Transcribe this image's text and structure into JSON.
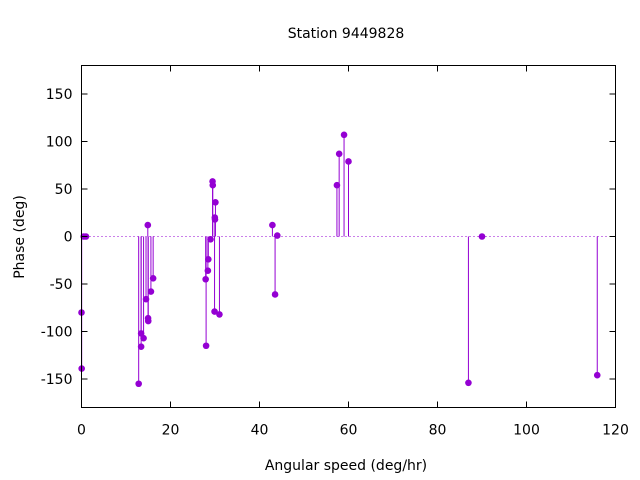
{
  "chart_data": {
    "type": "scatter",
    "title": "Station 9449828",
    "xlabel": "Angular speed (deg/hr)",
    "ylabel": "Phase (deg)",
    "xlim": [
      0,
      120
    ],
    "ylim": [
      -180,
      180
    ],
    "xticks": [
      0,
      20,
      40,
      60,
      80,
      100,
      120
    ],
    "yticks": [
      -150,
      -100,
      -50,
      0,
      50,
      100,
      150
    ],
    "grid": false,
    "zero_line": true,
    "marker_style": "impulses-with-points",
    "color": "#9400d3",
    "points": [
      {
        "x": 0.0,
        "y": -80
      },
      {
        "x": 0.04,
        "y": -139
      },
      {
        "x": 0.5,
        "y": 0
      },
      {
        "x": 1.0,
        "y": 0
      },
      {
        "x": 12.85,
        "y": -155
      },
      {
        "x": 13.4,
        "y": -102
      },
      {
        "x": 13.4,
        "y": -116
      },
      {
        "x": 13.95,
        "y": -107
      },
      {
        "x": 14.5,
        "y": -66
      },
      {
        "x": 14.9,
        "y": 12
      },
      {
        "x": 14.96,
        "y": -86
      },
      {
        "x": 15.0,
        "y": -89
      },
      {
        "x": 15.6,
        "y": -58
      },
      {
        "x": 16.1,
        "y": -44
      },
      {
        "x": 27.9,
        "y": -45
      },
      {
        "x": 28.0,
        "y": -115
      },
      {
        "x": 28.4,
        "y": -36
      },
      {
        "x": 28.5,
        "y": -24
      },
      {
        "x": 29.0,
        "y": -3
      },
      {
        "x": 29.45,
        "y": 58
      },
      {
        "x": 29.5,
        "y": 54
      },
      {
        "x": 29.9,
        "y": -79
      },
      {
        "x": 29.96,
        "y": 20
      },
      {
        "x": 30.0,
        "y": 18
      },
      {
        "x": 30.1,
        "y": 36
      },
      {
        "x": 31.0,
        "y": -82
      },
      {
        "x": 42.9,
        "y": 12
      },
      {
        "x": 43.5,
        "y": -61
      },
      {
        "x": 44.0,
        "y": 1
      },
      {
        "x": 57.4,
        "y": 54
      },
      {
        "x": 57.9,
        "y": 87
      },
      {
        "x": 59.0,
        "y": 107
      },
      {
        "x": 60.0,
        "y": 79
      },
      {
        "x": 86.95,
        "y": -154
      },
      {
        "x": 90.0,
        "y": 0
      },
      {
        "x": 115.9,
        "y": -146
      }
    ]
  }
}
